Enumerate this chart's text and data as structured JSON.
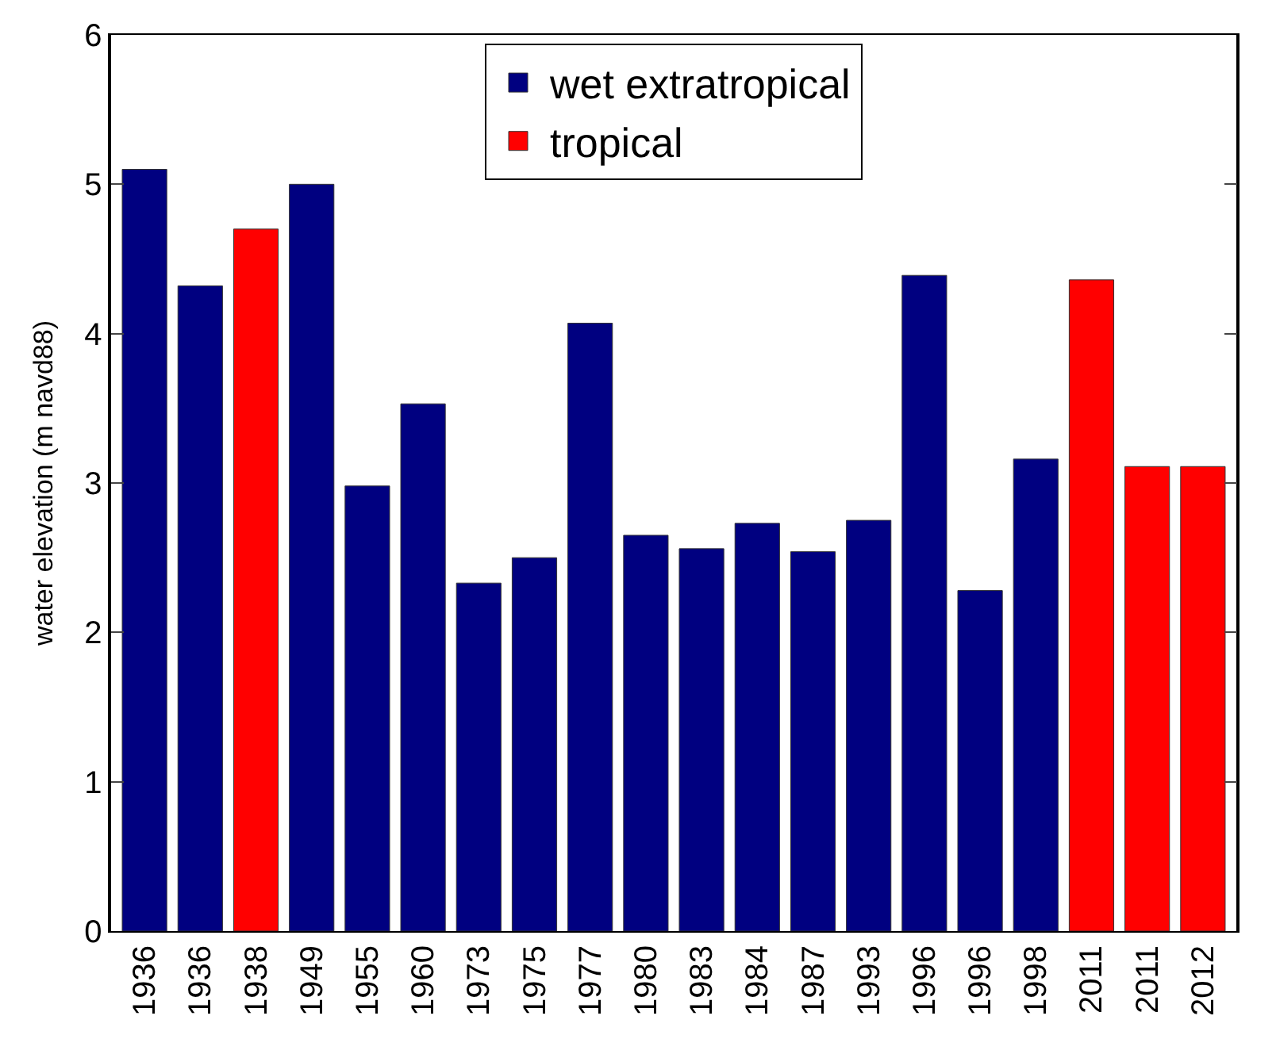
{
  "chart_data": {
    "type": "bar",
    "ylabel": "water elevation (m navd88)",
    "categories": [
      "1936",
      "1936",
      "1938",
      "1949",
      "1955",
      "1960",
      "1973",
      "1975",
      "1977",
      "1980",
      "1983",
      "1984",
      "1987",
      "1993",
      "1996",
      "1996",
      "1998",
      "2011",
      "2011",
      "2012"
    ],
    "series": [
      {
        "name": "wet extratropical",
        "color": "#000080",
        "values": [
          5.1,
          4.32,
          null,
          5.0,
          2.98,
          3.53,
          2.33,
          2.5,
          4.07,
          2.65,
          2.56,
          2.73,
          2.54,
          2.75,
          4.39,
          2.28,
          3.16,
          null,
          null,
          null
        ]
      },
      {
        "name": "tropical",
        "color": "#ff0000",
        "values": [
          null,
          null,
          4.7,
          null,
          null,
          null,
          null,
          null,
          null,
          null,
          null,
          null,
          null,
          null,
          null,
          null,
          null,
          4.36,
          3.11,
          3.11
        ]
      }
    ],
    "ylim": [
      0,
      6
    ],
    "yticks": [
      0,
      1,
      2,
      3,
      4,
      5,
      6
    ],
    "legend": "top"
  }
}
